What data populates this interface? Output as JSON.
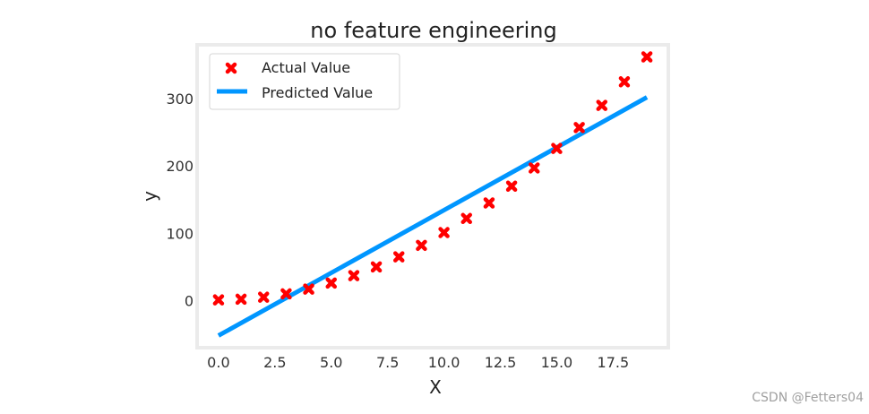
{
  "chart_data": {
    "type": "scatter",
    "title": "no feature engineering",
    "xlabel": "X",
    "ylabel": "y",
    "xlim": [
      -0.95,
      19.95
    ],
    "ylim": [
      -70,
      380
    ],
    "grid": false,
    "legend_position": "top-left",
    "x_ticks": [
      {
        "value": 0.0,
        "label": "0.0"
      },
      {
        "value": 2.5,
        "label": "2.5"
      },
      {
        "value": 5.0,
        "label": "5.0"
      },
      {
        "value": 7.5,
        "label": "7.5"
      },
      {
        "value": 10.0,
        "label": "10.0"
      },
      {
        "value": 12.5,
        "label": "12.5"
      },
      {
        "value": 15.0,
        "label": "15.0"
      },
      {
        "value": 17.5,
        "label": "17.5"
      }
    ],
    "y_ticks": [
      {
        "value": 0,
        "label": "0"
      },
      {
        "value": 100,
        "label": "100"
      },
      {
        "value": 200,
        "label": "200"
      },
      {
        "value": 300,
        "label": "300"
      }
    ],
    "series": [
      {
        "name": "Actual Value",
        "kind": "scatter",
        "marker": "X",
        "color": "#ff0000",
        "x": [
          0,
          1,
          2,
          3,
          4,
          5,
          6,
          7,
          8,
          9,
          10,
          11,
          12,
          13,
          14,
          15,
          16,
          17,
          18,
          19
        ],
        "y": [
          1,
          2,
          5,
          10,
          17,
          26,
          37,
          50,
          65,
          82,
          101,
          122,
          145,
          170,
          197,
          226,
          257,
          290,
          325,
          362
        ]
      },
      {
        "name": "Predicted Value",
        "kind": "line",
        "color": "#0096ff",
        "x": [
          0,
          19
        ],
        "y": [
          -52,
          302
        ]
      }
    ]
  },
  "watermark": "CSDN @Fetters04"
}
